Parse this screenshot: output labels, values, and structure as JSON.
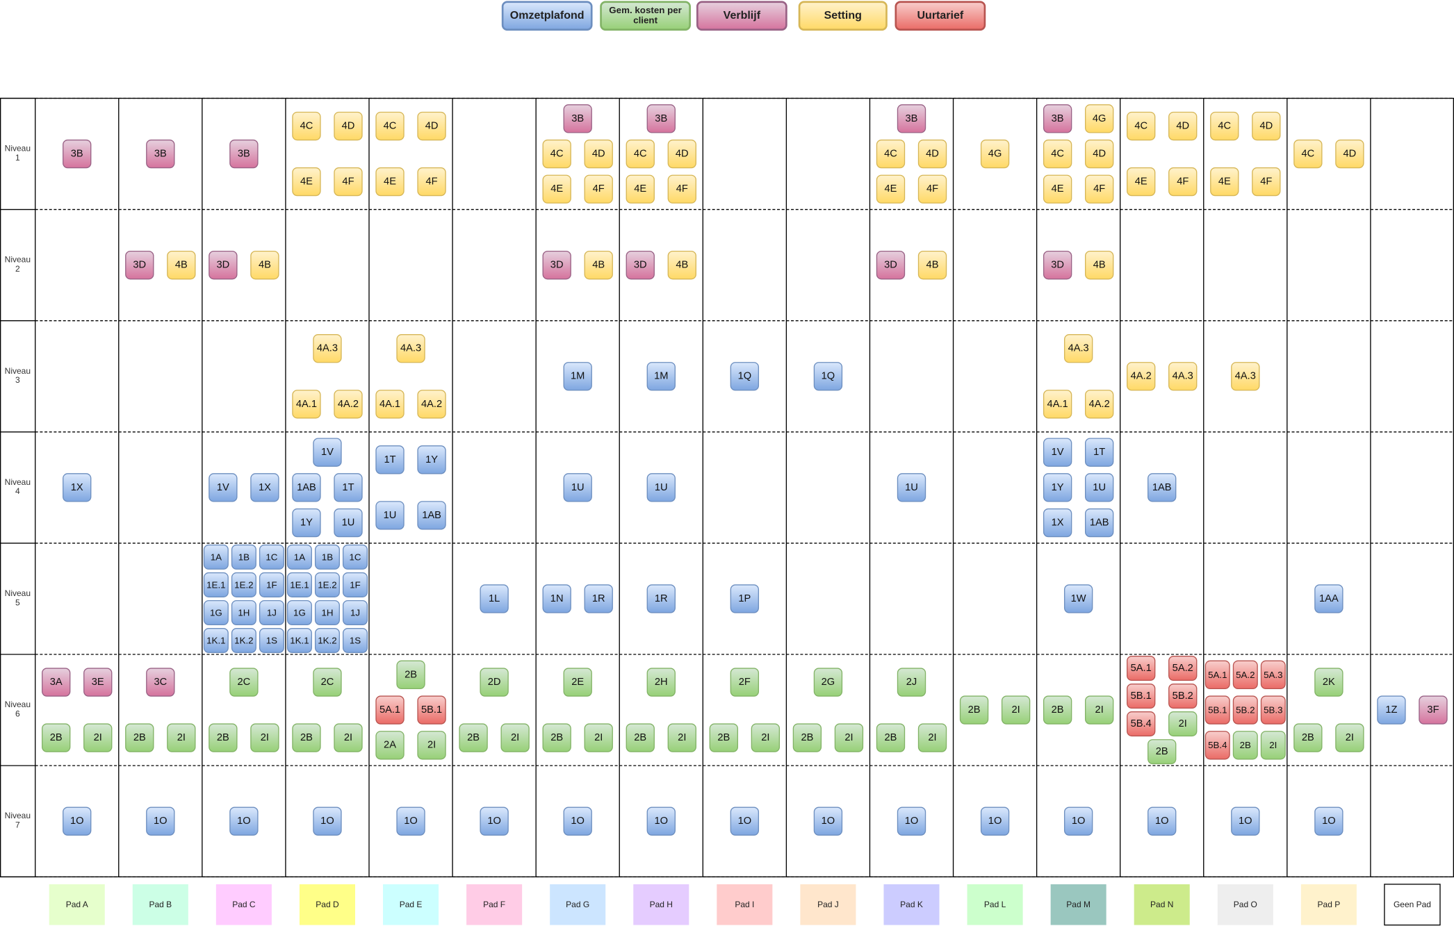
{
  "legend": [
    {
      "text": "Omzetplafond",
      "fill": "#dae8fc",
      "fill2": "#7ea6e0",
      "stroke": "#6c8ebf"
    },
    {
      "text": "Gem. kosten per client",
      "fill": "#d5e8d4",
      "fill2": "#97d077",
      "stroke": "#82b366"
    },
    {
      "text": "Verblijf",
      "fill": "#e6d0de",
      "fill2": "#d5739d",
      "stroke": "#996185"
    },
    {
      "text": "Setting",
      "fill": "#fff2cc",
      "fill2": "#ffd966",
      "stroke": "#d6b656"
    },
    {
      "text": "Uurtarief",
      "fill": "#f8cecc",
      "fill2": "#ea6b66",
      "stroke": "#b85450"
    }
  ],
  "levels": [
    "Niveau 1",
    "Niveau 2",
    "Niveau 3",
    "Niveau 4",
    "Niveau 5",
    "Niveau 6",
    "Niveau 7"
  ],
  "columns": [
    {
      "pad": "Pad A",
      "color": "#e6ffcc",
      "cells": [
        [
          [
            "3B"
          ]
        ],
        [],
        [],
        [
          [
            "1X"
          ]
        ],
        [],
        [
          [
            "3A",
            "3E"
          ],
          [
            "2B",
            "2I"
          ]
        ],
        [
          [
            "1O"
          ]
        ]
      ]
    },
    {
      "pad": "Pad B",
      "color": "#ccffe6",
      "cells": [
        [
          [
            "3B"
          ]
        ],
        [
          [
            "3D",
            "4B"
          ]
        ],
        [],
        [],
        [],
        [
          [
            "3C"
          ],
          [
            "2B",
            "2I"
          ]
        ],
        [
          [
            "1O"
          ]
        ]
      ]
    },
    {
      "pad": "Pad C",
      "color": "#ffccff",
      "cells": [
        [
          [
            "3B"
          ]
        ],
        [
          [
            "3D",
            "4B"
          ]
        ],
        [],
        [
          [
            "1V",
            "1X"
          ]
        ],
        [
          [
            "1A",
            "1B",
            "1C"
          ],
          [
            "1E.1",
            "1E.2",
            "1F"
          ],
          [
            "1G",
            "1H",
            "1J"
          ],
          [
            "1K.1",
            "1K.2",
            "1S"
          ]
        ],
        [
          [
            "2C"
          ],
          [
            "2B",
            "2I"
          ]
        ],
        [
          [
            "1O"
          ]
        ]
      ]
    },
    {
      "pad": "Pad D",
      "color": "#ffff88",
      "cells": [
        [
          [
            "4C",
            "4D"
          ],
          [
            "4E",
            "4F"
          ]
        ],
        [],
        [
          [
            "4A.3"
          ],
          [
            "4A.1",
            "4A.2"
          ]
        ],
        [
          [
            "1V"
          ],
          [
            "1AB",
            "1T"
          ],
          [
            "1Y",
            "1U"
          ]
        ],
        [
          [
            "1A",
            "1B",
            "1C"
          ],
          [
            "1E.1",
            "1E.2",
            "1F"
          ],
          [
            "1G",
            "1H",
            "1J"
          ],
          [
            "1K.1",
            "1K.2",
            "1S"
          ]
        ],
        [
          [
            "2C"
          ],
          [
            "2B",
            "2I"
          ]
        ],
        [
          [
            "1O"
          ]
        ]
      ]
    },
    {
      "pad": "Pad E",
      "color": "#ccffff",
      "cells": [
        [
          [
            "4C",
            "4D"
          ],
          [
            "4E",
            "4F"
          ]
        ],
        [],
        [
          [
            "4A.3"
          ],
          [
            "4A.1",
            "4A.2"
          ]
        ],
        [
          [
            "1T",
            "1Y"
          ],
          [
            "1U",
            "1AB"
          ]
        ],
        [],
        [
          [
            "2B"
          ],
          [
            "5A.1",
            "5B.1"
          ],
          [
            "2A",
            "2I"
          ]
        ],
        [
          [
            "1O"
          ]
        ]
      ]
    },
    {
      "pad": "Pad F",
      "color": "#ffcce6",
      "cells": [
        [],
        [],
        [],
        [],
        [
          [
            "1L"
          ]
        ],
        [
          [
            "2D"
          ],
          [
            "2B",
            "2I"
          ]
        ],
        [
          [
            "1O"
          ]
        ]
      ]
    },
    {
      "pad": "Pad G",
      "color": "#cce5ff",
      "cells": [
        [
          [
            "3B"
          ],
          [
            "4C",
            "4D"
          ],
          [
            "4E",
            "4F"
          ]
        ],
        [
          [
            "3D",
            "4B"
          ]
        ],
        [
          [
            "1M"
          ]
        ],
        [
          [
            "1U"
          ]
        ],
        [
          [
            "1N",
            "1R"
          ]
        ],
        [
          [
            "2E"
          ],
          [
            "2B",
            "2I"
          ]
        ],
        [
          [
            "1O"
          ]
        ]
      ]
    },
    {
      "pad": "Pad H",
      "color": "#e5ccff",
      "cells": [
        [
          [
            "3B"
          ],
          [
            "4C",
            "4D"
          ],
          [
            "4E",
            "4F"
          ]
        ],
        [
          [
            "3D",
            "4B"
          ]
        ],
        [
          [
            "1M"
          ]
        ],
        [
          [
            "1U"
          ]
        ],
        [
          [
            "1R"
          ]
        ],
        [
          [
            "2H"
          ],
          [
            "2B",
            "2I"
          ]
        ],
        [
          [
            "1O"
          ]
        ]
      ]
    },
    {
      "pad": "Pad I",
      "color": "#ffcccc",
      "cells": [
        [],
        [],
        [
          [
            "1Q"
          ]
        ],
        [],
        [
          [
            "1P"
          ]
        ],
        [
          [
            "2F"
          ],
          [
            "2B",
            "2I"
          ]
        ],
        [
          [
            "1O"
          ]
        ]
      ]
    },
    {
      "pad": "Pad J",
      "color": "#ffe6cc",
      "cells": [
        [],
        [],
        [
          [
            "1Q"
          ]
        ],
        [],
        [],
        [
          [
            "2G"
          ],
          [
            "2B",
            "2I"
          ]
        ],
        [
          [
            "1O"
          ]
        ]
      ]
    },
    {
      "pad": "Pad K",
      "color": "#ccccff",
      "cells": [
        [
          [
            "3B"
          ],
          [
            "4C",
            "4D"
          ],
          [
            "4E",
            "4F"
          ]
        ],
        [
          [
            "3D",
            "4B"
          ]
        ],
        [],
        [
          [
            "1U"
          ]
        ],
        [],
        [
          [
            "2J"
          ],
          [
            "2B",
            "2I"
          ]
        ],
        [
          [
            "1O"
          ]
        ]
      ]
    },
    {
      "pad": "Pad L",
      "color": "#ccffcc",
      "cells": [
        [
          [
            "4G"
          ]
        ],
        [],
        [],
        [],
        [],
        [
          [
            "2B",
            "2I"
          ]
        ],
        [
          [
            "1O"
          ]
        ]
      ]
    },
    {
      "pad": "Pad M",
      "color": "#9ac7bf",
      "cells": [
        [
          [
            "3B",
            "4G"
          ],
          [
            "4C",
            "4D"
          ],
          [
            "4E",
            "4F"
          ]
        ],
        [
          [
            "3D",
            "4B"
          ]
        ],
        [
          [
            "4A.3"
          ],
          [
            "4A.1",
            "4A.2"
          ]
        ],
        [
          [
            "1V",
            "1T"
          ],
          [
            "1Y",
            "1U"
          ],
          [
            "1X",
            "1AB"
          ]
        ],
        [
          [
            "1W"
          ]
        ],
        [
          [
            "2B",
            "2I"
          ]
        ],
        [
          [
            "1O"
          ]
        ]
      ]
    },
    {
      "pad": "Pad N",
      "color": "#cdeb8b",
      "cells": [
        [
          [
            "4C",
            "4D"
          ],
          [
            "4E",
            "4F"
          ]
        ],
        [],
        [
          [
            "4A.2",
            "4A.3"
          ]
        ],
        [
          [
            "1AB"
          ]
        ],
        [],
        [
          [
            "5A.1",
            "5A.2"
          ],
          [
            "5B.1",
            "5B.2"
          ],
          [
            "5B.4",
            "2I"
          ],
          [
            "2B"
          ]
        ],
        [
          [
            "1O"
          ]
        ]
      ]
    },
    {
      "pad": "Pad O",
      "color": "#eeeeee",
      "cells": [
        [
          [
            "4C",
            "4D"
          ],
          [
            "4E",
            "4F"
          ]
        ],
        [],
        [
          [
            "4A.3"
          ]
        ],
        [],
        [],
        [
          [
            "5A.1",
            "5A.2",
            "5A.3"
          ],
          [
            "5B.1",
            "5B.2",
            "5B.3"
          ],
          [
            "5B.4",
            "2B",
            "2I"
          ]
        ],
        [
          [
            "1O"
          ]
        ]
      ]
    },
    {
      "pad": "Pad P",
      "color": "#fff2cc",
      "cells": [
        [
          [
            "4C",
            "4D"
          ]
        ],
        [],
        [],
        [],
        [
          [
            "1AA"
          ]
        ],
        [
          [
            "2K"
          ],
          [
            "2B",
            "2I"
          ]
        ],
        [
          [
            "1O"
          ]
        ]
      ]
    },
    {
      "pad": "Geen Pad",
      "color": "#ffffff",
      "cells": [
        [],
        [],
        [],
        [],
        [],
        [
          [
            "1Z",
            "3F"
          ]
        ],
        []
      ]
    }
  ]
}
